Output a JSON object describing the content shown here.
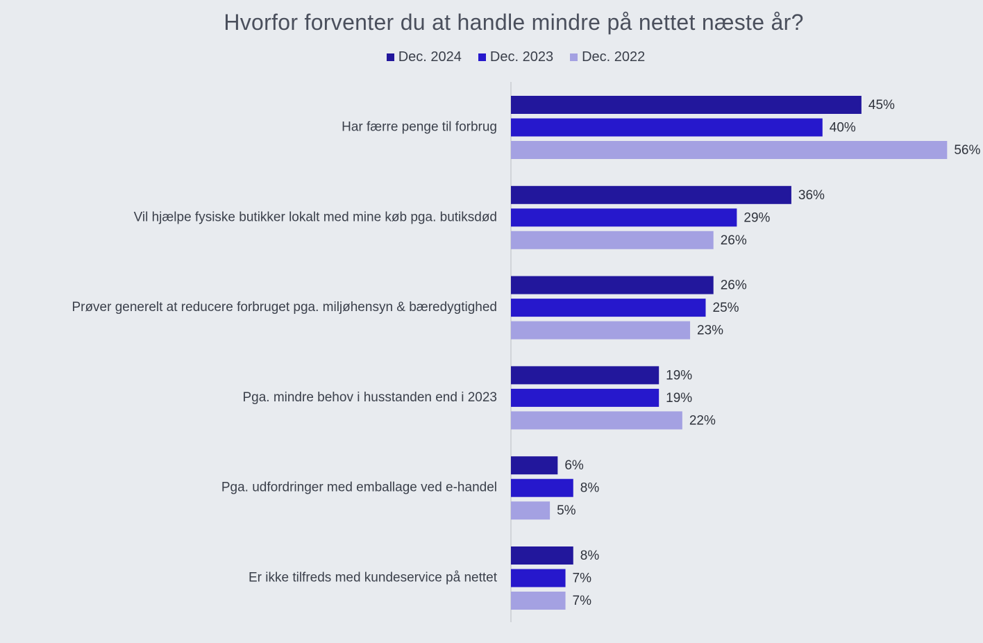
{
  "chart_data": {
    "type": "bar",
    "orientation": "horizontal",
    "title": "Hvorfor forventer du at handle mindre på nettet næste år?",
    "categories": [
      "Har færre penge til forbrug",
      "Vil hjælpe fysiske butikker lokalt med mine køb pga. butiksdød",
      "Prøver generelt at reducere forbruget pga. miljøhensyn & bæredygtighed",
      "Pga. mindre behov i husstanden end i 2023",
      "Pga. udfordringer med emballage ved e-handel",
      "Er ikke tilfreds med kundeservice på nettet"
    ],
    "series": [
      {
        "name": "Dec. 2024",
        "color": "#22179c",
        "values": [
          45,
          36,
          26,
          19,
          6,
          8
        ]
      },
      {
        "name": "Dec. 2023",
        "color": "#2618cc",
        "values": [
          40,
          29,
          25,
          19,
          8,
          7
        ]
      },
      {
        "name": "Dec. 2022",
        "color": "#a4a1e2",
        "values": [
          56,
          26,
          23,
          22,
          5,
          7
        ]
      }
    ],
    "value_suffix": "%",
    "xlim": [
      0,
      56
    ],
    "legend_position": "top-center",
    "grid": false
  }
}
